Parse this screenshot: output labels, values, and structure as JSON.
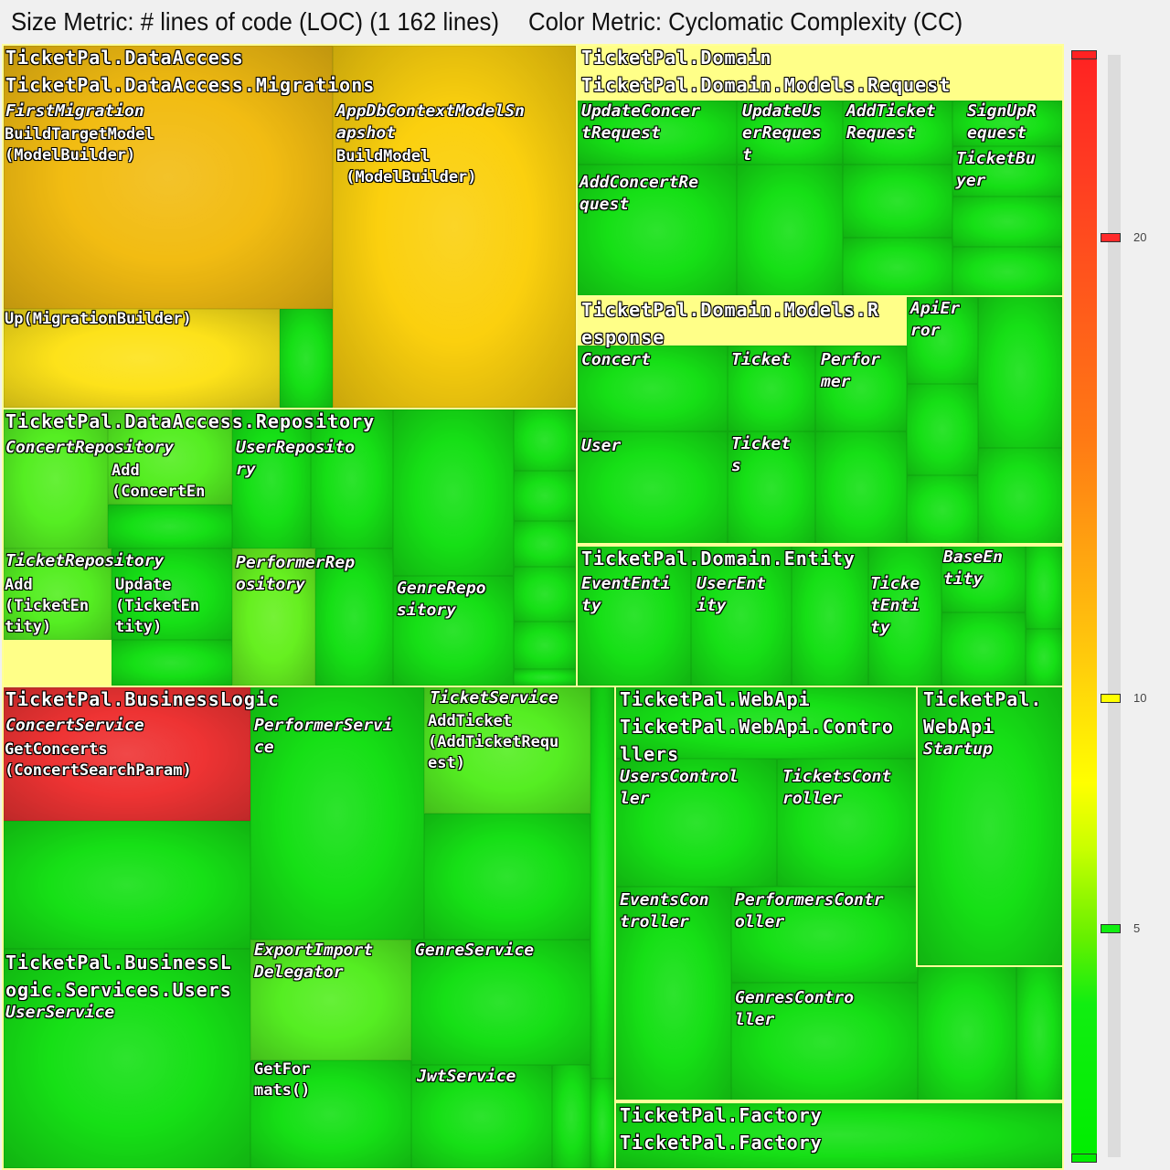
{
  "header": {
    "size_metric": "Size Metric: # lines of code (LOC) (1 162 lines)",
    "color_metric": "Color Metric: Cyclomatic Complexity (CC)"
  },
  "legend": {
    "marks": [
      {
        "label": "20",
        "value": 20,
        "color": "#ff2a2a"
      },
      {
        "label": "10",
        "value": 10,
        "color": "#ffff00"
      },
      {
        "label": "5",
        "value": 5,
        "color": "#11ee11"
      }
    ],
    "max_value": 24,
    "min_value": 0,
    "top_color": "#ff2222",
    "bottom_color": "#00ee00"
  },
  "labels": {
    "dataaccess": "TicketPal.DataAccess",
    "migrations": "TicketPal.DataAccess.Migrations",
    "first_migration": "FirstMigration",
    "build_target_model": "BuildTargetModel\n(ModelBuilder)",
    "up_migration": "Up(MigrationBuilder)",
    "appdb_snapshot": "AppDbContextModelSn\napshot",
    "build_model": "BuildModel\n (ModelBuilder)",
    "repository": "TicketPal.DataAccess.Repository",
    "concert_repository": "ConcertRepository",
    "add_concert_entity": "Add\n(ConcertEn",
    "user_repository": "UserReposito\nry",
    "ticket_repository": "TicketRepository",
    "add_ticket_entity": "Add\n(TicketEn\ntity)",
    "update_ticket_entity": "Update\n(TicketEn\ntity)",
    "performer_repository": "PerformerRep\nository",
    "genre_repository": "GenreRepo\nsitory",
    "domain": "TicketPal.Domain",
    "models_request": "TicketPal.Domain.Models.Request",
    "update_concert_request": "UpdateConcer\ntRequest",
    "update_user_request": "UpdateUs\nerReques\nt",
    "add_ticket_request": "AddTicket\nRequest",
    "signup_request": "SignUpR\nequest",
    "ticket_buyer": "TicketBu\nyer",
    "add_concert_request": "AddConcertRe\nquest",
    "models_response": "TicketPal.Domain.Models.R\nesponse",
    "concert": "Concert",
    "ticket": "Ticket",
    "performer": "Perfor\nmer",
    "user": "User",
    "tickets": "Ticket\ns",
    "api_error": "ApiEr\nror",
    "entity": "TicketPal.Domain.Entity",
    "event_entity": "EventEnti\nty",
    "user_entity": "UserEnt\nity",
    "ticket_entity": "Ticke\ntEnti\nty",
    "base_entity": "BaseEn\ntity",
    "businesslogic": "TicketPal.BusinessLogic",
    "concert_service": "ConcertService",
    "get_concerts": "GetConcerts\n(ConcertSearchParam)",
    "performer_service": "PerformerServi\nce",
    "ticket_service": "TicketService",
    "add_ticket": "AddTicket\n(AddTicketRequ\nest)",
    "bl_services_users": "TicketPal.BusinessL\nogic.Services.Users",
    "user_service": "UserService",
    "export_import": "ExportImport\nDelegator",
    "get_formats": "GetFor\nmats()",
    "genre_service": "GenreService",
    "jwt_service": "JwtService",
    "webapi": "TicketPal.WebApi",
    "webapi_controllers": "TicketPal.WebApi.Contro\nllers",
    "users_controller": "UsersControl\nler",
    "tickets_controller": "TicketsCont\nroller",
    "events_controller": "EventsCon\ntroller",
    "performers_controller": "PerformersContr\noller",
    "genres_controller": "GenresContro\nller",
    "webapi_root": "TicketPal.\nWebApi",
    "startup": "Startup",
    "factory": "TicketPal.Factory",
    "factory_ns": "TicketPal.Factory"
  }
}
